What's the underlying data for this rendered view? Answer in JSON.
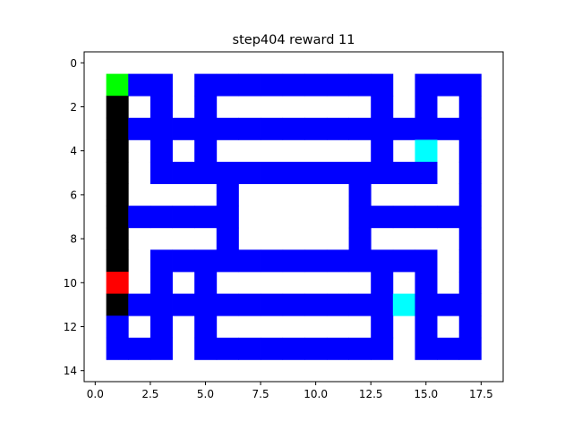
{
  "title": "step404 reward 11",
  "colors": {
    "wall": "#0000ff",
    "empty": "#ffffff",
    "trail": "#000000",
    "agent": "#ff0000",
    "start": "#00ff00",
    "pellet": "#00ffff"
  },
  "legend_codes": {
    "0": "empty",
    "1": "wall",
    "2": "trail",
    "3": "agent",
    "4": "start",
    "5": "pellet"
  },
  "chart_data": {
    "type": "heatmap",
    "title": "step404 reward 11",
    "xlim": [
      -0.5,
      18.5
    ],
    "ylim": [
      14.5,
      -0.5
    ],
    "y_inverted": true,
    "x_ticks": [
      "0.0",
      "2.5",
      "5.0",
      "7.5",
      "10.0",
      "12.5",
      "15.0",
      "17.5"
    ],
    "x_tick_values": [
      0,
      2.5,
      5,
      7.5,
      10,
      12.5,
      15,
      17.5
    ],
    "y_ticks": [
      "0",
      "2",
      "4",
      "6",
      "8",
      "10",
      "12",
      "14"
    ],
    "y_tick_values": [
      0,
      2,
      4,
      6,
      8,
      10,
      12,
      14
    ],
    "grid": [
      "0000000000000000000",
      "0411011111111101110",
      "0201010000000101010",
      "0211111111111111110",
      "0201010000000105010",
      "0201111111111111010",
      "0200001000001000010",
      "0211111000001111110",
      "0200001000001000010",
      "0201111111111111010",
      "0301010000000101010",
      "0211111111111151110",
      "0101010000000101010",
      "0111011111111101110",
      "0000000000000000000"
    ]
  }
}
